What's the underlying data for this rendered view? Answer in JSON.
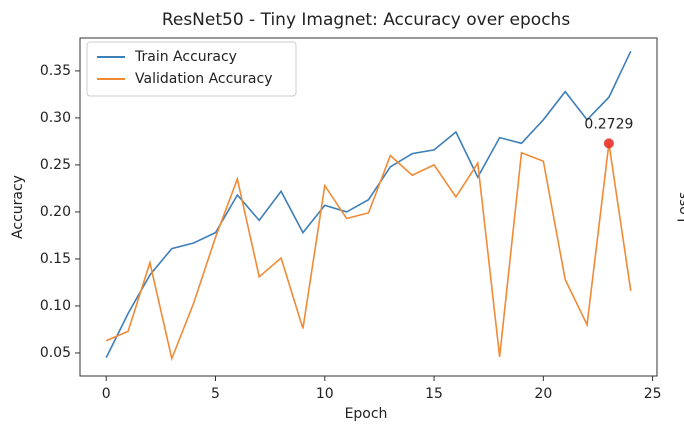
{
  "chart_data": {
    "type": "line",
    "title": "ResNet50 - Tiny Imagnet: Accuracy over epochs",
    "x_label": "Epoch",
    "y_label": "Accuracy",
    "x": [
      0,
      1,
      2,
      3,
      4,
      5,
      6,
      7,
      8,
      9,
      10,
      11,
      12,
      13,
      14,
      15,
      16,
      17,
      18,
      19,
      20,
      21,
      22,
      23,
      24
    ],
    "series": [
      {
        "name": "Train Accuracy",
        "color": "#3f7fb8",
        "values": [
          0.045,
          0.092,
          0.133,
          0.161,
          0.167,
          0.178,
          0.218,
          0.191,
          0.222,
          0.178,
          0.207,
          0.2,
          0.213,
          0.248,
          0.262,
          0.266,
          0.285,
          0.237,
          0.279,
          0.273,
          0.298,
          0.328,
          0.298,
          0.322,
          0.371
        ]
      },
      {
        "name": "Validation Accuracy",
        "color": "#f08a35",
        "values": [
          0.063,
          0.073,
          0.146,
          0.044,
          0.103,
          0.173,
          0.235,
          0.131,
          0.151,
          0.076,
          0.228,
          0.193,
          0.199,
          0.26,
          0.239,
          0.25,
          0.216,
          0.252,
          0.046,
          0.263,
          0.254,
          0.128,
          0.08,
          0.2729,
          0.116
        ]
      }
    ],
    "annotations": [
      {
        "text": "0.2729",
        "x": 23,
        "y": 0.2729,
        "color": "#e8322a"
      }
    ],
    "xlim": [
      -1.2,
      25.2
    ],
    "ylim": [
      0.0255,
      0.385
    ],
    "xticks": [
      0,
      5,
      10,
      15,
      20,
      25
    ],
    "yticks": [
      0.05,
      {
        "value": 0.1,
        "label": "0.10"
      },
      0.15,
      {
        "value": 0.2,
        "label": "0.20"
      },
      0.25,
      {
        "value": 0.3,
        "label": "0.30"
      },
      0.35
    ],
    "grid": false,
    "legend": "upper left"
  },
  "side_label": "Loss"
}
